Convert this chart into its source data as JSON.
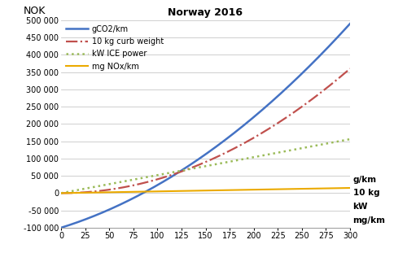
{
  "title": "Norway 2016",
  "ylabel": "NOK",
  "right_labels": [
    "g/km",
    "10 kg",
    "kW",
    "mg/km"
  ],
  "xmin": 0,
  "xmax": 300,
  "ymin": -100000,
  "ymax": 500000,
  "xticks": [
    0,
    25,
    50,
    75,
    100,
    125,
    150,
    175,
    200,
    225,
    250,
    275,
    300
  ],
  "yticks": [
    -100000,
    -50000,
    0,
    50000,
    100000,
    150000,
    200000,
    250000,
    300000,
    350000,
    400000,
    450000,
    500000
  ],
  "series": [
    {
      "label": "gCO2/km",
      "color": "#4472C4",
      "ls": "solid",
      "lw": 1.8,
      "a": 3.676,
      "b": 864.0,
      "c": -100000.0
    },
    {
      "label": "10 kg curb weight",
      "color": "#C0504D",
      "ls": "dashdot",
      "lw": 1.6,
      "a": 4.0,
      "b": 0.0,
      "c": 0.0
    },
    {
      "label": "kW ICE power",
      "color": "#9BBB59",
      "ls": "dotted",
      "lw": 1.8,
      "a": 0.0,
      "b": 520.0,
      "c": 0.0
    },
    {
      "label": "mg NOx/km",
      "color": "#EBAA00",
      "ls": "solid",
      "lw": 1.5,
      "a": 0.0,
      "b": 50.0,
      "c": 0.0
    }
  ],
  "bg": "#ffffff",
  "grid_color": "#c8c8c8",
  "legend_dot_label": "····",
  "figsize": [
    5.0,
    3.11
  ],
  "dpi": 100
}
